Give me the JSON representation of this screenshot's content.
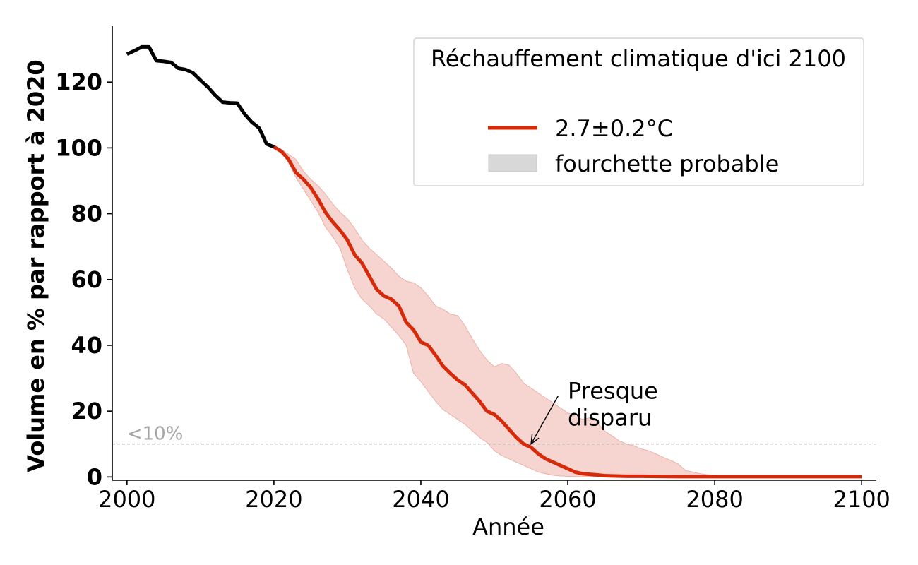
{
  "chart_data": {
    "type": "line",
    "title": "",
    "xlabel": "Année",
    "ylabel": "Volume en % par rapport à 2020",
    "xlim": [
      1998,
      2102
    ],
    "ylim": [
      -1,
      137
    ],
    "xticks": [
      2000,
      2020,
      2040,
      2060,
      2080,
      2100
    ],
    "yticks": [
      0,
      20,
      40,
      60,
      80,
      100,
      120
    ],
    "grid": false,
    "legend": {
      "title": "Réchauffement climatique d'ici 2100",
      "placement": "top-right",
      "entries": [
        "2.7±0.2°C",
        "fourchette probable"
      ]
    },
    "threshold": {
      "value": 10,
      "label": "<10%"
    },
    "annotation": {
      "text_lines": [
        "Presque",
        "disparu"
      ],
      "point": [
        2055,
        10
      ],
      "text_at": [
        2060,
        30
      ]
    },
    "series": [
      {
        "name": "historique",
        "color": "#000000",
        "x": [
          2000,
          2001,
          2002,
          2003,
          2004,
          2005,
          2006,
          2007,
          2008,
          2009,
          2010,
          2011,
          2012,
          2013,
          2014,
          2015,
          2016,
          2017,
          2018,
          2019,
          2020,
          2021
        ],
        "y": [
          128.5,
          129.5,
          130.7,
          130.7,
          126.5,
          126.3,
          126,
          124.2,
          123.8,
          122.8,
          120.6,
          118.5,
          116,
          113.9,
          113.7,
          113.6,
          110.3,
          107.8,
          106,
          101.2,
          100.3,
          99
        ]
      },
      {
        "name": "2.7±0.2°C",
        "color": "#d62a0a",
        "x": [
          2020,
          2021,
          2022,
          2023,
          2024,
          2025,
          2026,
          2027,
          2028,
          2029,
          2030,
          2031,
          2032,
          2033,
          2034,
          2035,
          2036,
          2037,
          2038,
          2039,
          2040,
          2041,
          2042,
          2043,
          2044,
          2045,
          2046,
          2047,
          2048,
          2049,
          2050,
          2051,
          2052,
          2053,
          2054,
          2055,
          2056,
          2057,
          2058,
          2059,
          2060,
          2061,
          2062,
          2063,
          2064,
          2065,
          2066,
          2068,
          2070,
          2075,
          2080,
          2085,
          2090,
          2095,
          2100
        ],
        "y": [
          100.3,
          99,
          96.5,
          92.5,
          90.5,
          88,
          84.5,
          80.5,
          77.5,
          75,
          72,
          67.5,
          65,
          61,
          57,
          55,
          54,
          52,
          47,
          44.7,
          41,
          40,
          37,
          33.7,
          31.5,
          29.5,
          28,
          25.5,
          23,
          20,
          19,
          17,
          14.5,
          12,
          10,
          9,
          7,
          5.5,
          4.5,
          3.5,
          2.5,
          1.5,
          1,
          0.8,
          0.6,
          0.4,
          0.3,
          0.2,
          0.2,
          0.1,
          0.1,
          0.1,
          0.1,
          0.1,
          0.1
        ]
      }
    ],
    "band": {
      "name": "fourchette probable",
      "color": "#f6d5d0",
      "edge_color": "#ebb1a8",
      "x": [
        2020,
        2021,
        2022,
        2023,
        2024,
        2025,
        2026,
        2027,
        2028,
        2029,
        2030,
        2031,
        2032,
        2033,
        2034,
        2035,
        2036,
        2037,
        2038,
        2039,
        2040,
        2041,
        2042,
        2043,
        2044,
        2045,
        2046,
        2047,
        2048,
        2049,
        2050,
        2051,
        2052,
        2053,
        2054,
        2055,
        2056,
        2057,
        2058,
        2059,
        2060,
        2061,
        2062,
        2063,
        2064,
        2065,
        2066,
        2067,
        2068,
        2069,
        2070,
        2071,
        2072,
        2073,
        2074,
        2075,
        2076,
        2077,
        2078,
        2079,
        2080,
        2082,
        2085,
        2090,
        2095,
        2100
      ],
      "upper": [
        100.3,
        99.5,
        98,
        96.5,
        93,
        90.5,
        88.5,
        86,
        83,
        80.5,
        78.5,
        75.5,
        72,
        69.5,
        67.5,
        65.5,
        63.5,
        61,
        59.5,
        59,
        57.5,
        55,
        52,
        51,
        49.5,
        49,
        46,
        42,
        38.5,
        35.5,
        33.5,
        34.5,
        34,
        31.5,
        28.5,
        27,
        25.5,
        24,
        22.5,
        21,
        19.5,
        18.5,
        17.5,
        18,
        16.5,
        14,
        12.5,
        11,
        10,
        9.5,
        8.5,
        8,
        7,
        6,
        5,
        4,
        2,
        1.5,
        1,
        0.7,
        0.5,
        0.3,
        0.2,
        0.1,
        0.1,
        0.1
      ],
      "lower": [
        100.3,
        99,
        95.5,
        91,
        87.5,
        84,
        80.5,
        76,
        73,
        69.5,
        63,
        57.5,
        54,
        52,
        49.5,
        48,
        45.5,
        43,
        40,
        31.5,
        29,
        26,
        23,
        20.5,
        19,
        17.5,
        16,
        14,
        12,
        10.5,
        8,
        6.5,
        5.5,
        4.5,
        3.5,
        2.5,
        1.5,
        1,
        0.5,
        0.3,
        0.2,
        0.1,
        0.1,
        0.1,
        0.1,
        0.1,
        0.1,
        0.1,
        0.1,
        0.1,
        0.1,
        0.1,
        0.1,
        0.1,
        0.1,
        0.1,
        0.1,
        0.1,
        0.1,
        0.1,
        0.1,
        0.1,
        0.1,
        0.1,
        0.1,
        0.1
      ]
    }
  }
}
